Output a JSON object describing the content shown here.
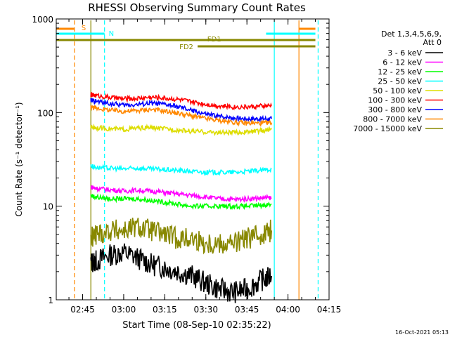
{
  "chart_data": {
    "type": "line",
    "title": "RHESSI Observing Summary Count Rates",
    "ylabel": "Count Rate (s⁻¹ detector⁻¹)",
    "xlabel": "Start Time (08-Sep-10 02:35:22)",
    "yscale": "log",
    "ylim": [
      1,
      1000
    ],
    "xlim": [
      "02:35:22",
      "04:15:00"
    ],
    "y_ticks": [
      "1",
      "10",
      "100",
      "1000"
    ],
    "x_ticks": [
      "02:45",
      "03:00",
      "03:15",
      "03:30",
      "03:45",
      "04:00",
      "04:15"
    ],
    "grid": false,
    "legend_position": "right",
    "legend_header": [
      "Det 1,3,4,5,6,9,",
      "Att 0"
    ],
    "timestamp": "16-Oct-2021 05:13",
    "series": [
      {
        "name": "3 - 6 keV",
        "color": "#000000",
        "x": [
          "02:48",
          "02:50",
          "02:55",
          "03:00",
          "03:05",
          "03:10",
          "03:15",
          "03:20",
          "03:25",
          "03:30",
          "03:35",
          "03:40",
          "03:45",
          "03:50",
          "03:54"
        ],
        "y": [
          2.5,
          2.6,
          3.0,
          3.2,
          2.8,
          2.4,
          2.2,
          2.0,
          1.8,
          1.5,
          1.3,
          1.2,
          1.3,
          1.6,
          1.8
        ]
      },
      {
        "name": "6 - 12 keV",
        "color": "#ff00ff",
        "x": [
          "02:48",
          "02:50",
          "02:55",
          "03:00",
          "03:05",
          "03:10",
          "03:15",
          "03:20",
          "03:25",
          "03:30",
          "03:35",
          "03:40",
          "03:45",
          "03:50",
          "03:54"
        ],
        "y": [
          16,
          15.5,
          15,
          14.5,
          14.8,
          14.5,
          14,
          13.5,
          13,
          12.5,
          12,
          11.8,
          12,
          12.2,
          12.3
        ]
      },
      {
        "name": "12 - 25 keV",
        "color": "#00ff00",
        "x": [
          "02:48",
          "02:50",
          "02:55",
          "03:00",
          "03:05",
          "03:10",
          "03:15",
          "03:20",
          "03:25",
          "03:30",
          "03:35",
          "03:40",
          "03:45",
          "03:50",
          "03:54"
        ],
        "y": [
          13,
          12.5,
          12,
          12,
          12,
          11.5,
          11,
          10.5,
          10,
          10,
          10,
          10,
          10,
          10.2,
          10.5
        ]
      },
      {
        "name": "25 - 50 keV",
        "color": "#00ffff",
        "x": [
          "02:48",
          "02:50",
          "02:55",
          "03:00",
          "03:05",
          "03:10",
          "03:15",
          "03:20",
          "03:25",
          "03:30",
          "03:35",
          "03:40",
          "03:45",
          "03:50",
          "03:54"
        ],
        "y": [
          27,
          26,
          25.5,
          25,
          25.5,
          25,
          24.5,
          24,
          23.5,
          23,
          23,
          23,
          23.5,
          24,
          25
        ]
      },
      {
        "name": "50 - 100 keV",
        "color": "#dddd00",
        "x": [
          "02:48",
          "02:50",
          "02:55",
          "03:00",
          "03:05",
          "03:10",
          "03:15",
          "03:20",
          "03:25",
          "03:30",
          "03:35",
          "03:40",
          "03:45",
          "03:50",
          "03:54"
        ],
        "y": [
          70,
          69,
          67,
          66,
          68,
          69,
          67,
          65,
          63,
          62,
          61,
          61,
          62,
          64,
          66
        ]
      },
      {
        "name": "100 - 300 keV",
        "color": "#ff0000",
        "x": [
          "02:48",
          "02:50",
          "02:55",
          "03:00",
          "03:05",
          "03:10",
          "03:15",
          "03:20",
          "03:25",
          "03:30",
          "03:35",
          "03:40",
          "03:45",
          "03:50",
          "03:54"
        ],
        "y": [
          155,
          152,
          145,
          140,
          142,
          146,
          143,
          138,
          130,
          123,
          118,
          115,
          115,
          117,
          118
        ]
      },
      {
        "name": "300 - 800 keV",
        "color": "#0000ff",
        "x": [
          "02:48",
          "02:50",
          "02:55",
          "03:00",
          "03:05",
          "03:10",
          "03:15",
          "03:20",
          "03:25",
          "03:30",
          "03:35",
          "03:40",
          "03:45",
          "03:50",
          "03:54"
        ],
        "y": [
          135,
          132,
          125,
          120,
          122,
          126,
          122,
          115,
          105,
          96,
          91,
          88,
          86,
          86,
          86
        ]
      },
      {
        "name": "800 - 7000 keV",
        "color": "#ff8800",
        "x": [
          "02:48",
          "02:50",
          "02:55",
          "03:00",
          "03:05",
          "03:10",
          "03:15",
          "03:20",
          "03:25",
          "03:30",
          "03:35",
          "03:40",
          "03:45",
          "03:50",
          "03:54"
        ],
        "y": [
          115,
          112,
          106,
          103,
          105,
          108,
          104,
          98,
          92,
          86,
          82,
          79,
          77,
          77,
          78
        ]
      },
      {
        "name": "7000 - 15000 keV",
        "color": "#888800",
        "x": [
          "02:48",
          "02:50",
          "02:55",
          "03:00",
          "03:05",
          "03:10",
          "03:15",
          "03:20",
          "03:25",
          "03:30",
          "03:35",
          "03:40",
          "03:45",
          "03:50",
          "03:54"
        ],
        "y": [
          4.5,
          5.0,
          5.5,
          5.5,
          6.0,
          5.5,
          5.0,
          4.5,
          4.5,
          4.0,
          4.0,
          4.0,
          4.5,
          5.0,
          5.5
        ]
      }
    ],
    "flag_bars": [
      {
        "label": "S",
        "color": "#ff8800",
        "segments": [
          [
            "02:35:22",
            "02:42"
          ],
          [
            "04:04",
            "04:10"
          ]
        ],
        "level": 1
      },
      {
        "label": "N",
        "color": "#00ffff",
        "segments": [
          [
            "02:35:22",
            "02:53"
          ],
          [
            "03:52",
            "04:10"
          ]
        ],
        "level": 2
      },
      {
        "label": "FD1",
        "color": "#888800",
        "segments": [
          [
            "02:35:22",
            "04:10"
          ]
        ],
        "level": 3
      },
      {
        "label": "FD2",
        "color": "#888800",
        "segments": [
          [
            "03:27",
            "04:10"
          ]
        ],
        "level": 4
      }
    ],
    "event_lines": [
      {
        "time": "02:42",
        "color": "#ff8800",
        "style": "dashed"
      },
      {
        "time": "02:48",
        "color": "#888800",
        "style": "solid"
      },
      {
        "time": "02:53",
        "color": "#00ffff",
        "style": "dashed"
      },
      {
        "time": "03:55",
        "color": "#00ffff",
        "style": "solid"
      },
      {
        "time": "04:04",
        "color": "#ff8800",
        "style": "solid"
      },
      {
        "time": "04:11",
        "color": "#00ffff",
        "style": "dashed"
      }
    ]
  }
}
